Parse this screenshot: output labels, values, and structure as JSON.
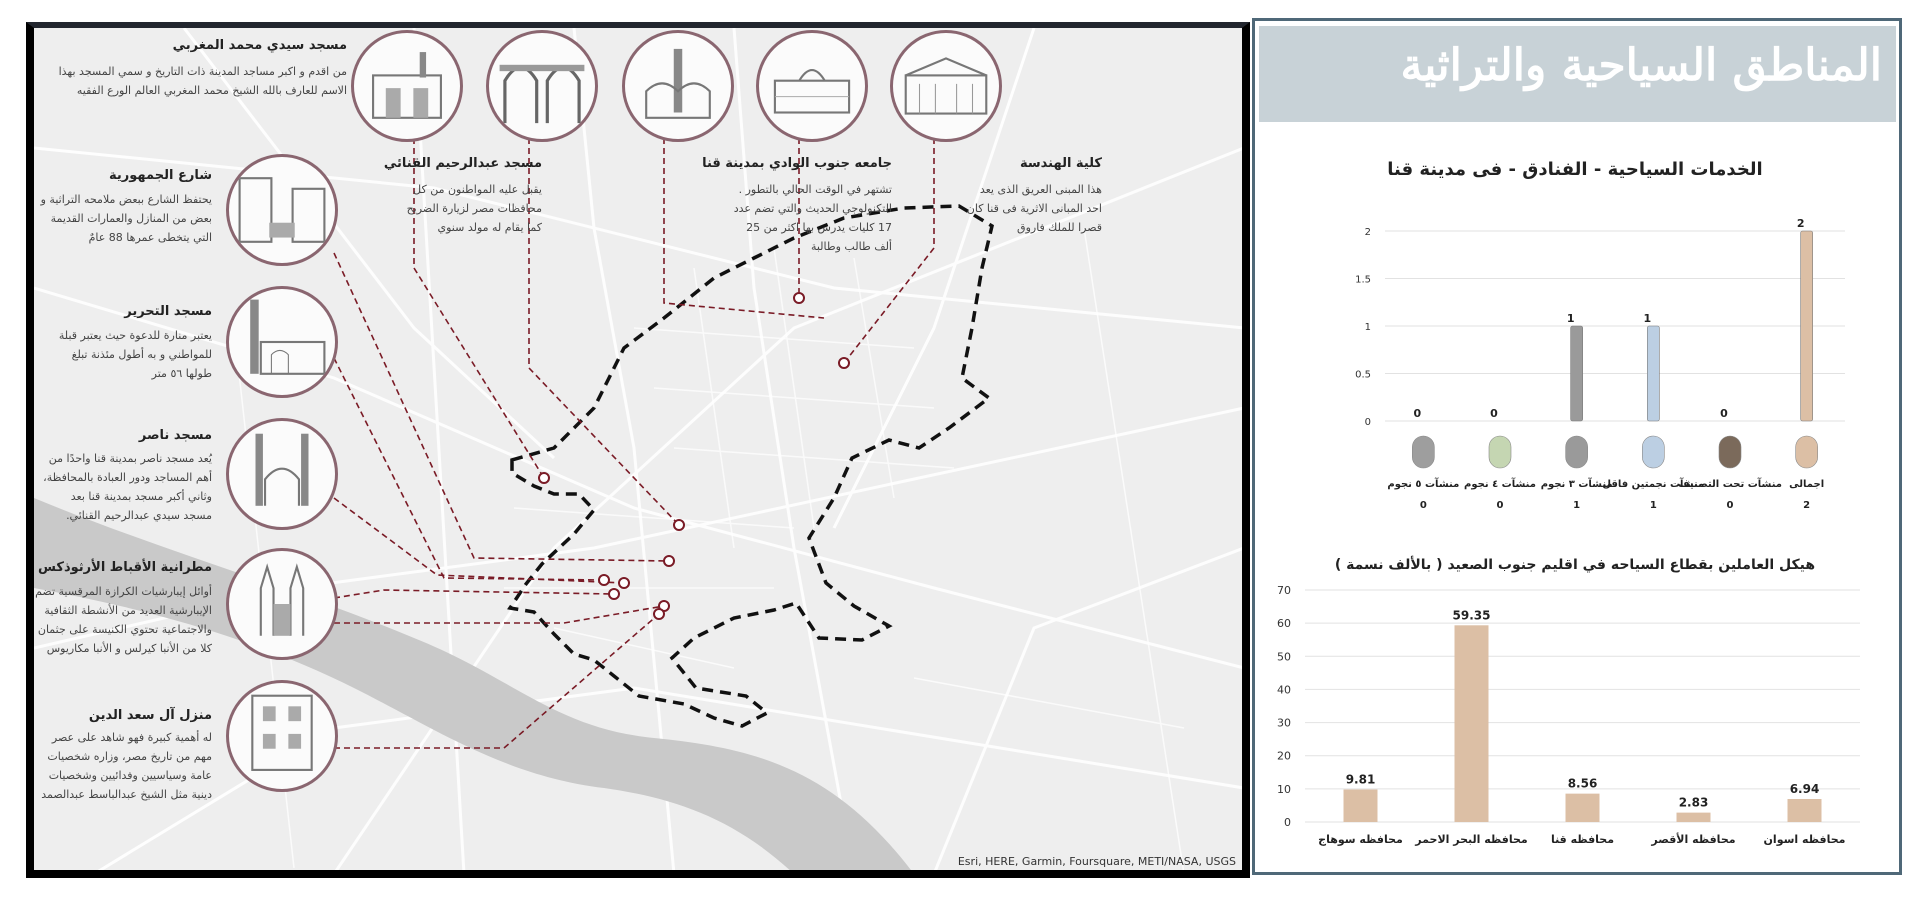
{
  "map": {
    "attribution": "Esri, HERE, Garmin, Foursquare, METI/NASA, USGS",
    "colors": {
      "boundary": "#111111",
      "leader": "#7a1b26",
      "river": "#c9c9c9",
      "photo_border": "#8a6670"
    },
    "sites": [
      {
        "title": "مسجد سيدي  محمد المغربي",
        "desc": "من اقدم و اكبر مساجد المدينة ذات التاريخ و سمي المسجد بهذا الاسم للعارف بالله الشيخ محمد المغربي العالم الورع الفقيه"
      },
      {
        "title": "شارع الجمهورية",
        "desc": "يحتفظ الشارع ببعض ملامحه التراثية و بعض من المنازل والعمارات القديمة التي يتخطى عمرها 88 عامٌ"
      },
      {
        "title": "مسجد التحرير",
        "desc": "يعتبر منارة للدعوة حيث يعتبر قبلة للمواطني و به أطول مئذنة تبلغ طولها ٥٦ متر"
      },
      {
        "title": "مسجد ناصر",
        "desc": "يُعد مسجد ناصر بمدينة قنا واحدًا من أهم المساجد ودور العبادة بالمحافظة، وثاني أكبر مسجد بمدينة قنا بعد مسجد سيدي عبدالرحيم القنائي."
      },
      {
        "title": "مطرانية الأقباط الأرثوذكس",
        "desc": "أوائل إيبارشيات الكرازة المرقسية تضم الإيبارشية العديد من الأنشطة الثقافية والاجتماعية تحتوي الكنيسة على جثمان كلا من الأنبا كيرلس و الأنبا مكاريوس"
      },
      {
        "title": "منزل آل سعد الدين",
        "desc": "له أهمية كبيرة فهو شاهد على عصر مهم من تاريخ مصر، وزاره شخصيات عامة وسياسيين وفدائيين وشخصيات دينية مثل الشيخ عبدالباسط عبدالصمد"
      },
      {
        "title": "مسجد عبدالرحيم القنائي",
        "desc": "يقبل عليه المواطنون من كل محافظات مصر لزيارة الضريح كما يقام له مولد سنوي"
      },
      {
        "title": "جامعه جنوب الوادي بمدينة قنا",
        "desc": "تشتهر في الوقت الحالي بالتطور . التكنولوجي الحديث والتي تضم عدد 17 كليات يدرس بها اكثر من 25 ألف طالب وطالبة"
      },
      {
        "title": "كلية الهندسة",
        "desc": "هذا المبنى العريق الذى يعد احد المبانى الاثرية فى قنا كان قصرا للملك فاروق"
      }
    ]
  },
  "panel": {
    "main_title": "المناطق السياحية والتراثية"
  },
  "chart_data": [
    {
      "type": "bar",
      "title": "الخدمات السياحية - الفنادق - فى مدينة قنا",
      "categories": [
        "اجمالى",
        "منشآت تحت التصنيف",
        "منشآت نجمتين فاقل",
        "منشآت ٣ نجوم",
        "منشآت ٤ نجوم",
        "منشآت ٥ نجوم"
      ],
      "values": [
        2,
        0,
        1,
        1,
        0,
        0
      ],
      "colors": [
        "#dcbfa5",
        "#7b6a5b",
        "#bccfe3",
        "#9a9a9a",
        "#c5d6b2",
        "#9e9e9e"
      ],
      "yticks": [
        "0",
        "0.5",
        "1",
        "1.5",
        "2"
      ],
      "ylim": [
        0,
        2
      ],
      "grid": true,
      "value_labels": [
        "2",
        "0",
        "1",
        "1",
        "0",
        "0"
      ]
    },
    {
      "type": "bar",
      "title": "هيكل العاملين بقطاع السياحه في اقليم جنوب الصعيد ( بالألف نسمة )",
      "categories": [
        "محافظه اسوان",
        "محافظه الأقصر",
        "محافظه قنا",
        "محافظه البحر الاحمر",
        "محافظه سوهاج"
      ],
      "values": [
        6.94,
        2.83,
        8.56,
        59.35,
        9.81
      ],
      "value_labels": [
        "6.94",
        "2.83",
        "8.56",
        "59.35",
        "9.81"
      ],
      "color": "#dcbfa5",
      "yticks": [
        "0",
        "10",
        "20",
        "30",
        "40",
        "50",
        "60",
        "70"
      ],
      "ylim": [
        0,
        70
      ],
      "grid": true
    }
  ]
}
